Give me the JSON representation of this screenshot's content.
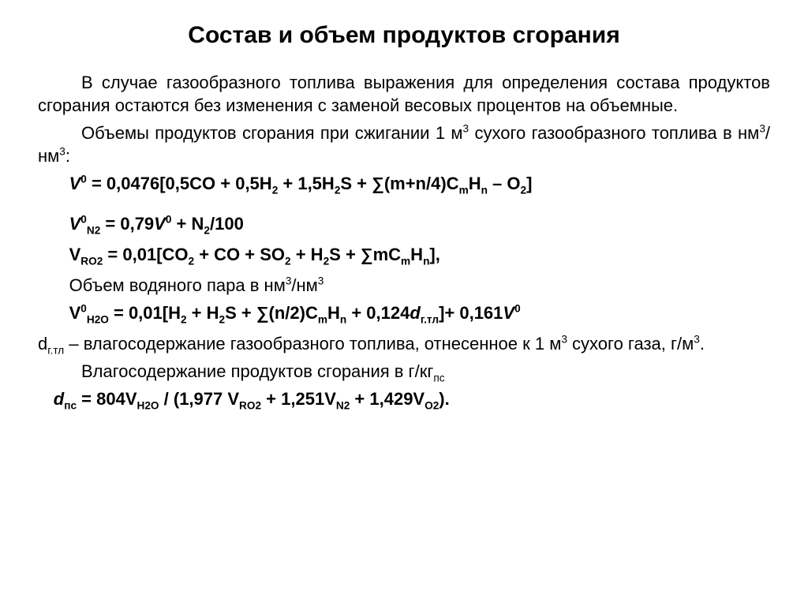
{
  "title": "Состав и объем продуктов сгорания",
  "p1": "В случае газообразного топлива выражения для определения состава продуктов сгорания остаются без изменения с заменой весовых процентов на объемные.",
  "p2_before": "Объемы продуктов сгорания при сжигании 1 м",
  "p2_sup": "3",
  "p2_mid": " сухого газообразного топлива в нм",
  "p2_sup2": "3",
  "p2_slash": "/нм",
  "p2_sup3": "3",
  "p2_end": ":",
  "f1": {
    "V": "V",
    "sup0": "0",
    "eq": " = 0,0476[0,5CO + 0,5H",
    "h2sub": "2",
    "plus15": " + 1,5H",
    "h2ssub": "2",
    "s": "S + ∑(m+n/4)C",
    "msub": "m",
    "H": "H",
    "nsub": "n",
    "minusO": " – O",
    "o2sub": "2",
    "close": "]"
  },
  "f2": {
    "V": "V",
    "sup0": "0",
    "N2": "N2",
    "eq": " = 0,79",
    "V2": "V",
    "sup0b": "0",
    "plus": " + N",
    "n2sub": "2",
    "over": "/100"
  },
  "f3": {
    "V": "V",
    "RO2": "RO2",
    "eq": " = 0,01[CO",
    "co2": "2",
    "plus": " + CO + SO",
    "so2": "2",
    "plus2": " + H",
    "h2": "2",
    "s": "S + ∑mC",
    "m": "m",
    "H": "H",
    "n": "n",
    "close": "],"
  },
  "p3_before": "Объем водяного пара в нм",
  "p3_sup": "3",
  "p3_slash": "/нм",
  "p3_sup2": "3",
  "f4": {
    "V": "V",
    "sup0": "0",
    "H2O": "H2O",
    "eq": " = 0,01[H",
    "h2": "2",
    "plus": " + H",
    "h2b": "2",
    "s": "S + ∑(n/2)C",
    "m": "m",
    "H": "H",
    "n": "n",
    "plus2": " + 0,124",
    "d": "d",
    "gtl": "г.тл",
    "close": "]+ 0,161",
    "V2": "V",
    "sup0b": "0"
  },
  "p4a": "d",
  "p4a_sub": "г.тл",
  "p4b": " – влагосодержание газообразного топлива, отнесенное к 1 м",
  "p4sup": "3",
  "p4c": " сухого газа, г/м",
  "p4sup2": "3",
  "p4d": ".",
  "p5a": "Влагосодержание продуктов сгорания в г/кг",
  "p5sub": "пс",
  "f5": {
    "d": "d",
    "ps": "пс",
    "eq": " = 804V",
    "H2O": "H2O",
    "div": " / (1,977 V",
    "RO2": "RO2",
    "plus": " + 1,251V",
    "N2": "N2",
    "plus2": " + 1,429V",
    "O2": "O2",
    "close": ")."
  }
}
